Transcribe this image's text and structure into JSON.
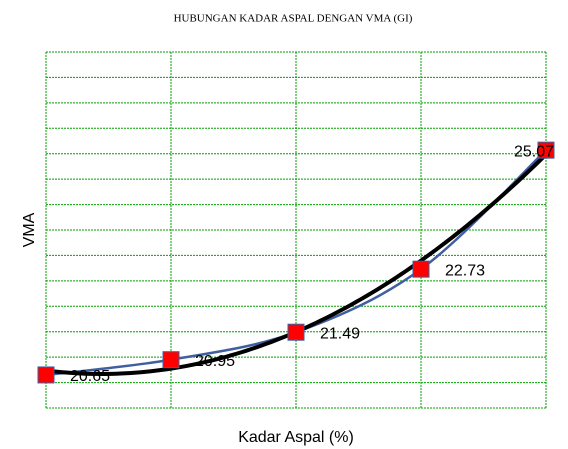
{
  "chart_data": {
    "type": "line",
    "title": "HUBUNGAN KADAR ASPAL DENGAN VMA (GI)",
    "x_label": "Kadar Aspal (%)",
    "y_label": "VMA",
    "categories": [
      null,
      null,
      null,
      null,
      null
    ],
    "series": [
      {
        "name": null,
        "color": "#3f5fa0",
        "marker_color": "#ff0000",
        "values": [
          20.65,
          20.95,
          21.49,
          22.73,
          25.07
        ]
      }
    ],
    "trendline": {
      "type": "poly2",
      "color": "#000000"
    },
    "ylim": [
      20,
      27
    ],
    "yticks": [
      20,
      20.5,
      21,
      21.5,
      22,
      22.5,
      23,
      23.5,
      24,
      24.5,
      25,
      25.5,
      26,
      26.5,
      27
    ],
    "grid": true,
    "grid_color": "#00a000"
  }
}
